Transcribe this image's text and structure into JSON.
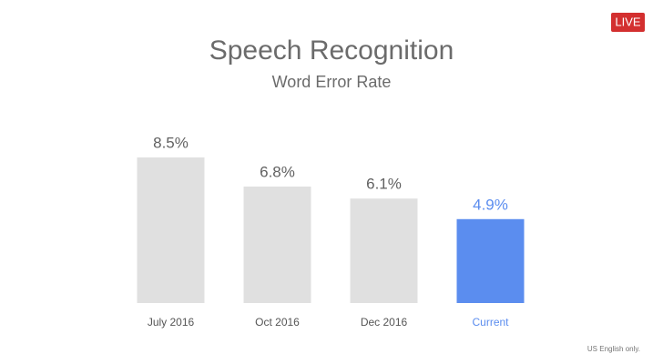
{
  "live_badge": "LIVE",
  "footnote": "US English only.",
  "chart_data": {
    "type": "bar",
    "title": "Speech Recognition",
    "subtitle": "Word Error Rate",
    "categories": [
      "July 2016",
      "Oct 2016",
      "Dec 2016",
      "Current"
    ],
    "values": [
      8.5,
      6.8,
      6.1,
      4.9
    ],
    "value_labels": [
      "8.5%",
      "6.8%",
      "6.1%",
      "4.9%"
    ],
    "colors": [
      "#e0e0e0",
      "#e0e0e0",
      "#e0e0e0",
      "#5b8def"
    ],
    "label_colors": [
      "#616161",
      "#616161",
      "#616161",
      "#5b8def"
    ]
  }
}
